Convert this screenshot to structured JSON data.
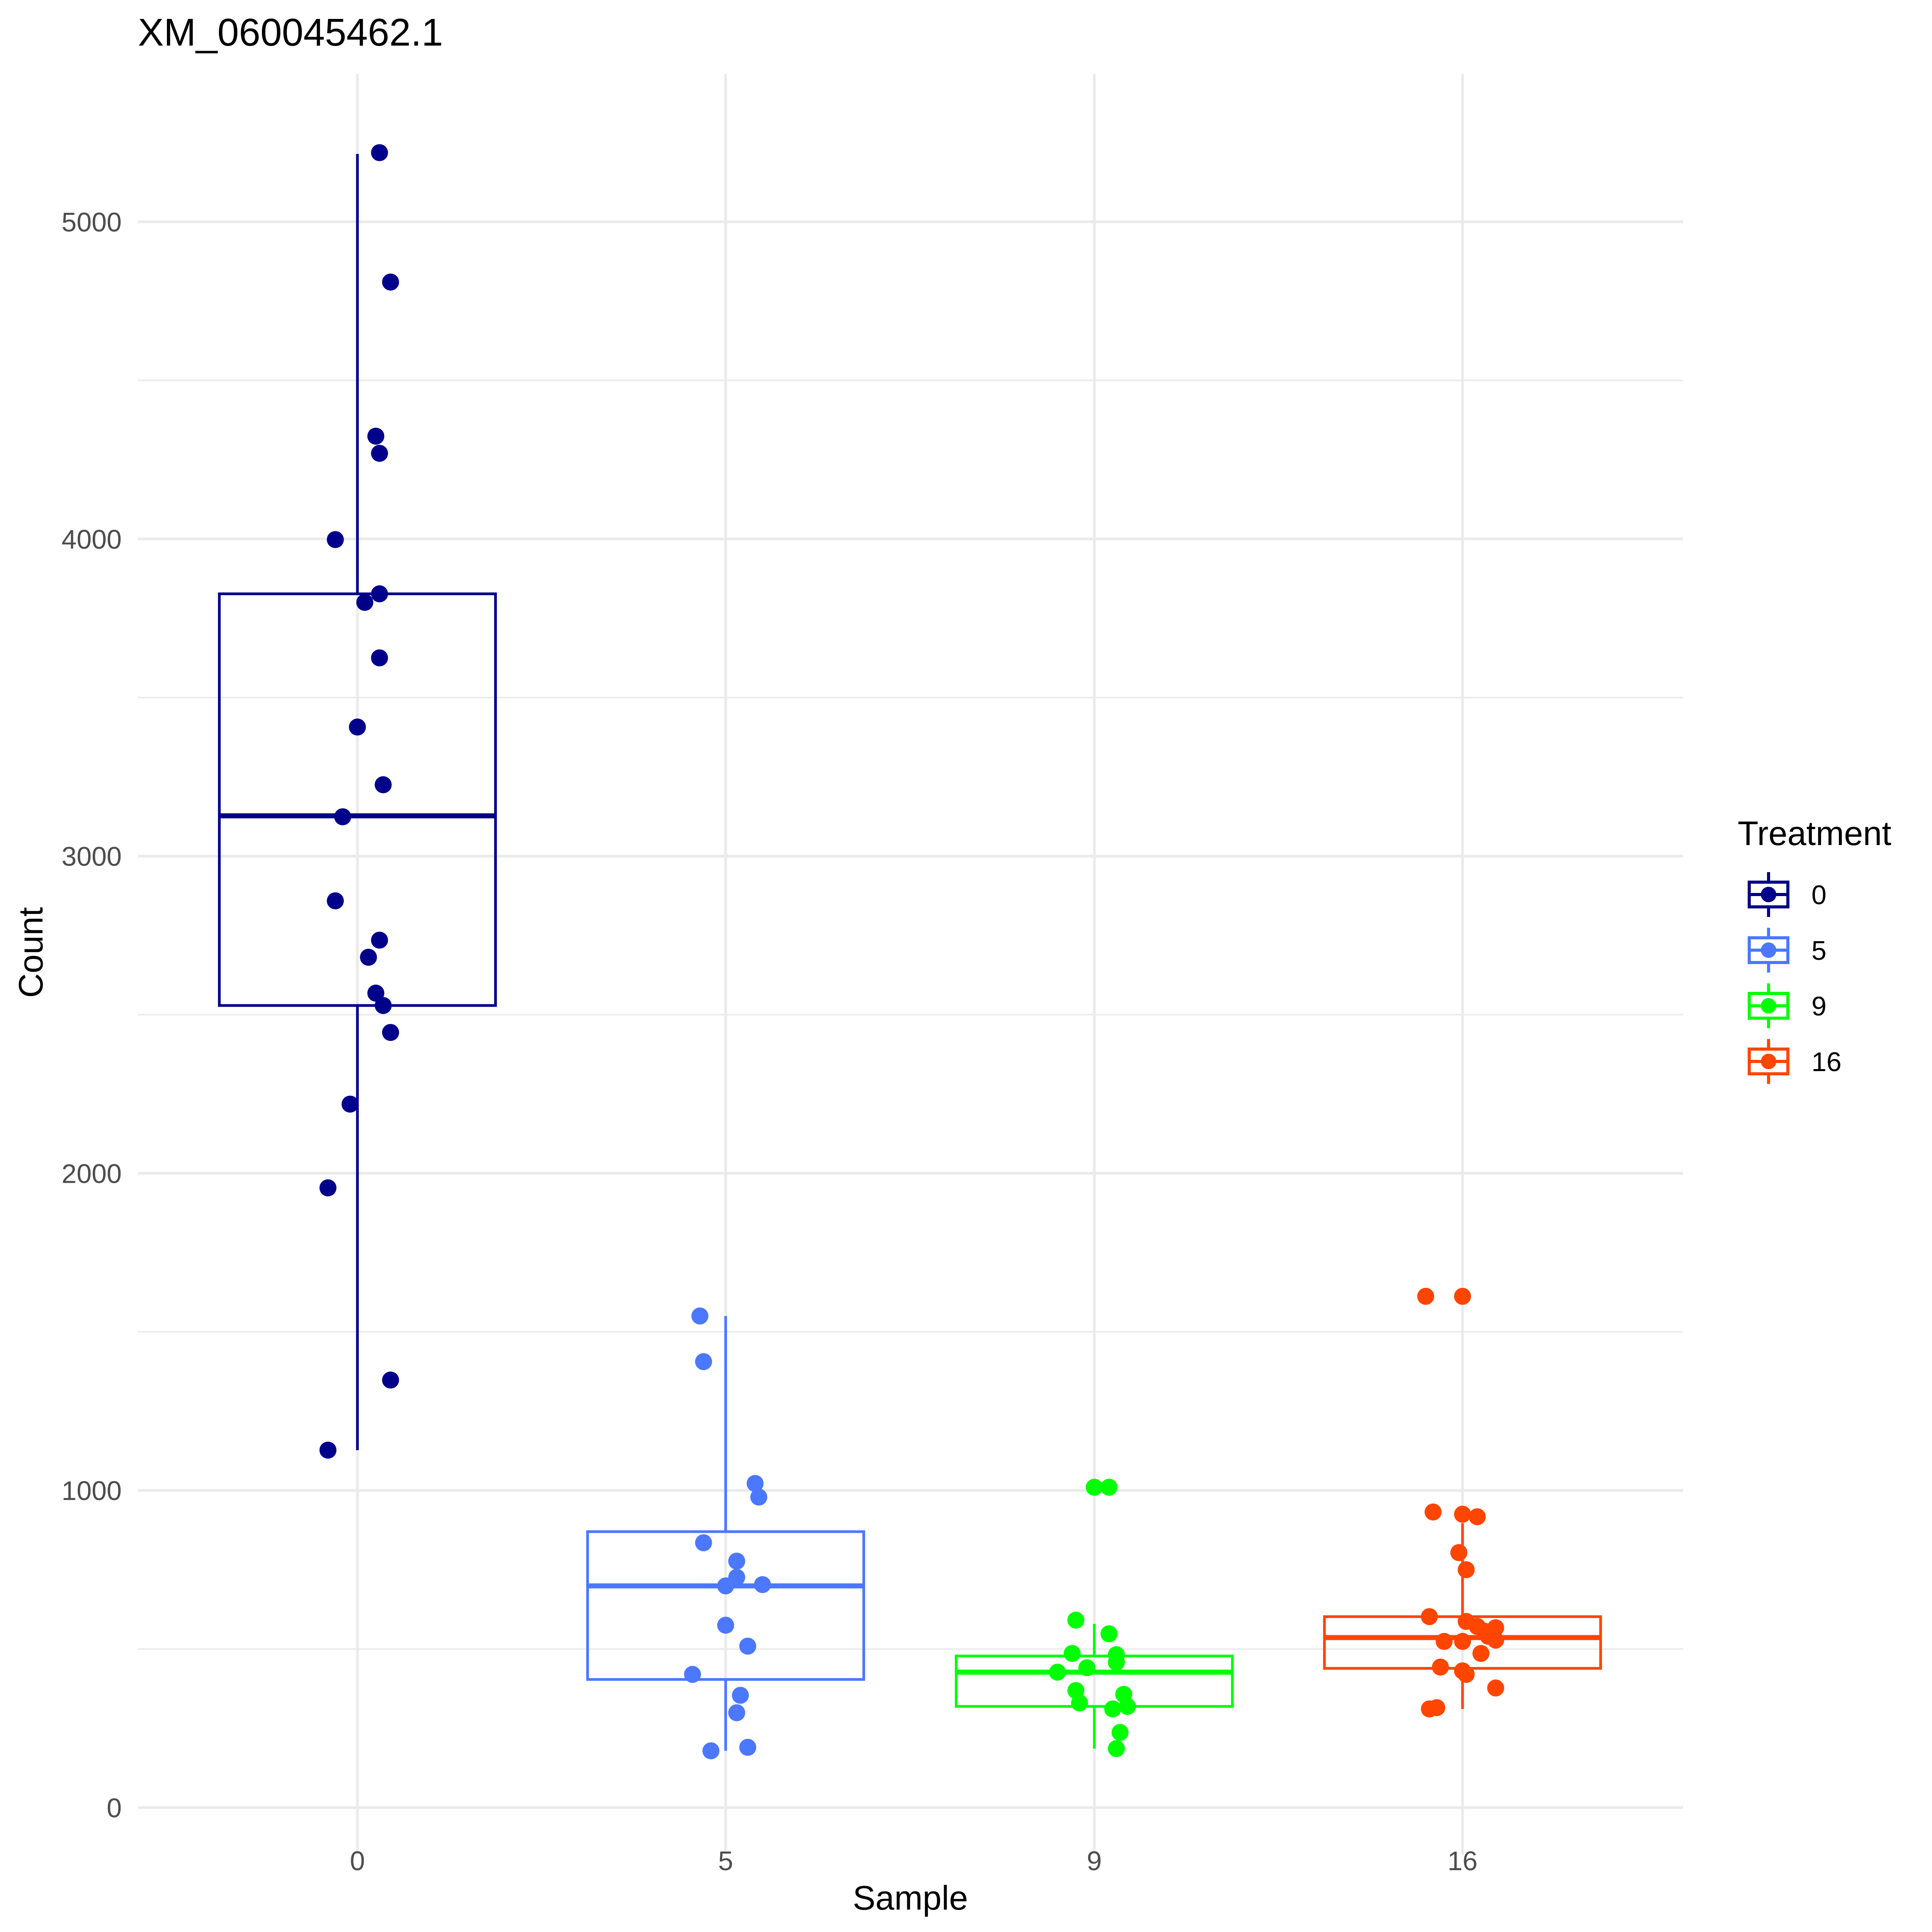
{
  "chart_data": {
    "type": "box",
    "title": "XM_060045462.1",
    "xlabel": "Sample",
    "ylabel": "Count",
    "categories": [
      "0",
      "5",
      "9",
      "16"
    ],
    "ylim": [
      -200,
      5450
    ],
    "y_ticks": [
      0,
      1000,
      2000,
      3000,
      4000,
      5000
    ],
    "y_tick_labels": [
      "0",
      "1000",
      "2000",
      "3000",
      "4000",
      "5000"
    ],
    "grid": true,
    "legend": {
      "title": "Treatment",
      "position": "right",
      "entries": [
        "0",
        "5",
        "9",
        "16"
      ]
    },
    "series": [
      {
        "name": "0",
        "color": "#00008B",
        "box": {
          "q1": 2529,
          "median": 3127,
          "q3": 3827,
          "whisker_low": 1127,
          "whisker_high": 5214
        },
        "points": [
          {
            "jitter": 0.06,
            "y": 5218
          },
          {
            "jitter": 0.09,
            "y": 4810
          },
          {
            "jitter": 0.05,
            "y": 4324
          },
          {
            "jitter": 0.06,
            "y": 4270
          },
          {
            "jitter": -0.06,
            "y": 3998
          },
          {
            "jitter": 0.06,
            "y": 3827
          },
          {
            "jitter": 0.02,
            "y": 3800
          },
          {
            "jitter": 0.06,
            "y": 3625
          },
          {
            "jitter": 0.0,
            "y": 3407
          },
          {
            "jitter": 0.07,
            "y": 3225
          },
          {
            "jitter": -0.04,
            "y": 3124
          },
          {
            "jitter": -0.06,
            "y": 2859
          },
          {
            "jitter": 0.06,
            "y": 2735
          },
          {
            "jitter": 0.03,
            "y": 2681
          },
          {
            "jitter": 0.05,
            "y": 2568
          },
          {
            "jitter": 0.07,
            "y": 2529
          },
          {
            "jitter": 0.09,
            "y": 2444
          },
          {
            "jitter": -0.02,
            "y": 2218
          },
          {
            "jitter": -0.08,
            "y": 1954
          },
          {
            "jitter": 0.09,
            "y": 1348
          },
          {
            "jitter": -0.08,
            "y": 1127
          }
        ]
      },
      {
        "name": "5",
        "color": "#4B78FF",
        "box": {
          "q1": 404,
          "median": 699,
          "q3": 870,
          "whisker_low": 179,
          "whisker_high": 1550
        },
        "points": [
          {
            "jitter": -0.07,
            "y": 1550
          },
          {
            "jitter": -0.06,
            "y": 1406
          },
          {
            "jitter": 0.08,
            "y": 1022
          },
          {
            "jitter": 0.09,
            "y": 979
          },
          {
            "jitter": -0.06,
            "y": 835
          },
          {
            "jitter": 0.03,
            "y": 777
          },
          {
            "jitter": 0.03,
            "y": 726
          },
          {
            "jitter": 0.0,
            "y": 699
          },
          {
            "jitter": 0.1,
            "y": 703
          },
          {
            "jitter": 0.0,
            "y": 575
          },
          {
            "jitter": 0.06,
            "y": 509
          },
          {
            "jitter": -0.09,
            "y": 420
          },
          {
            "jitter": 0.04,
            "y": 354
          },
          {
            "jitter": 0.03,
            "y": 299
          },
          {
            "jitter": 0.06,
            "y": 190
          },
          {
            "jitter": -0.04,
            "y": 179
          }
        ]
      },
      {
        "name": "9",
        "color": "#00FF00",
        "box": {
          "q1": 319,
          "median": 427,
          "q3": 478,
          "whisker_low": 186,
          "whisker_high": 579
        },
        "points": [
          {
            "jitter": 0.0,
            "y": 1010
          },
          {
            "jitter": 0.04,
            "y": 1010
          },
          {
            "jitter": -0.05,
            "y": 591
          },
          {
            "jitter": 0.04,
            "y": 548
          },
          {
            "jitter": -0.06,
            "y": 486
          },
          {
            "jitter": 0.06,
            "y": 482
          },
          {
            "jitter": 0.06,
            "y": 458
          },
          {
            "jitter": -0.02,
            "y": 441
          },
          {
            "jitter": -0.1,
            "y": 427
          },
          {
            "jitter": -0.05,
            "y": 369
          },
          {
            "jitter": 0.08,
            "y": 357
          },
          {
            "jitter": -0.04,
            "y": 330
          },
          {
            "jitter": 0.05,
            "y": 311
          },
          {
            "jitter": 0.09,
            "y": 319
          },
          {
            "jitter": 0.07,
            "y": 237
          },
          {
            "jitter": 0.06,
            "y": 186
          }
        ]
      },
      {
        "name": "16",
        "color": "#FF4500",
        "box": {
          "q1": 439,
          "median": 536,
          "q3": 602,
          "whisker_low": 311,
          "whisker_high": 897
        },
        "points": [
          {
            "jitter": -0.1,
            "y": 1612
          },
          {
            "jitter": 0.0,
            "y": 1612
          },
          {
            "jitter": -0.08,
            "y": 932
          },
          {
            "jitter": 0.0,
            "y": 925
          },
          {
            "jitter": 0.04,
            "y": 917
          },
          {
            "jitter": -0.01,
            "y": 804
          },
          {
            "jitter": 0.01,
            "y": 750
          },
          {
            "jitter": -0.09,
            "y": 602
          },
          {
            "jitter": 0.01,
            "y": 587
          },
          {
            "jitter": 0.04,
            "y": 571
          },
          {
            "jitter": 0.09,
            "y": 567
          },
          {
            "jitter": 0.06,
            "y": 556
          },
          {
            "jitter": 0.07,
            "y": 540
          },
          {
            "jitter": 0.09,
            "y": 528
          },
          {
            "jitter": -0.05,
            "y": 524
          },
          {
            "jitter": 0.0,
            "y": 524
          },
          {
            "jitter": 0.05,
            "y": 486
          },
          {
            "jitter": -0.06,
            "y": 443
          },
          {
            "jitter": 0.0,
            "y": 431
          },
          {
            "jitter": 0.01,
            "y": 420
          },
          {
            "jitter": 0.09,
            "y": 377
          },
          {
            "jitter": -0.09,
            "y": 311
          },
          {
            "jitter": -0.07,
            "y": 315
          }
        ]
      }
    ]
  }
}
